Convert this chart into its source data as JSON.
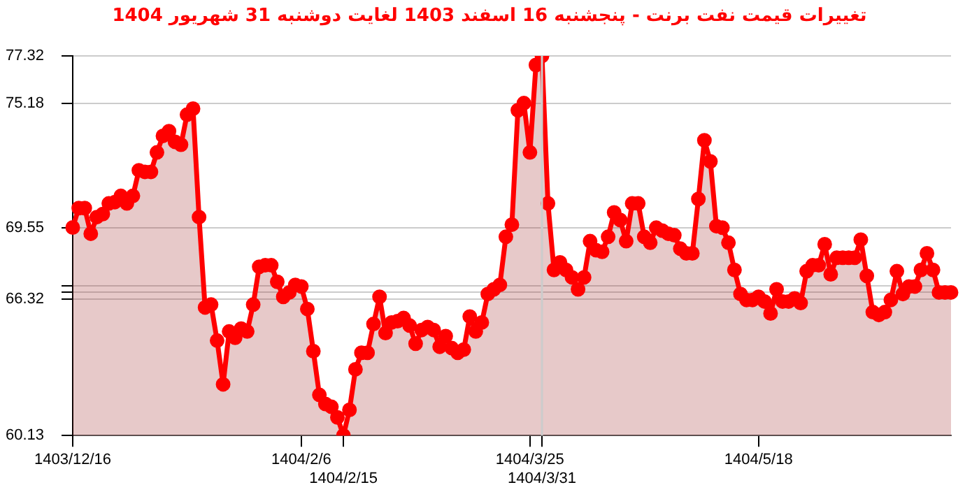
{
  "chart_data": {
    "type": "area",
    "title": "تغییرات قیمت نفت برنت - پنجشنبه 16 اسفند 1403 لغایت دوشنبه 31 شهریور 1404",
    "categories": [
      "1403/12/16",
      null,
      null,
      null,
      null,
      null,
      null,
      null,
      null,
      null,
      null,
      null,
      null,
      null,
      null,
      null,
      null,
      null,
      null,
      null,
      null,
      null,
      null,
      null,
      null,
      null,
      null,
      null,
      null,
      null,
      null,
      null,
      null,
      null,
      null,
      null,
      null,
      null,
      "1404/2/6",
      null,
      null,
      null,
      null,
      null,
      null,
      "1404/2/15",
      null,
      null,
      null,
      null,
      null,
      null,
      null,
      null,
      null,
      null,
      null,
      null,
      null,
      null,
      null,
      null,
      null,
      null,
      null,
      null,
      null,
      null,
      null,
      null,
      null,
      null,
      null,
      null,
      null,
      null,
      "1404/3/25",
      null,
      "1404/3/31",
      null,
      null,
      null,
      null,
      null,
      null,
      null,
      null,
      null,
      null,
      null,
      null,
      null,
      null,
      null,
      null,
      null,
      null,
      null,
      null,
      null,
      null,
      null,
      null,
      null,
      null,
      null,
      null,
      null,
      null,
      null,
      null,
      null,
      null,
      null,
      "1404/5/18",
      null,
      null,
      null,
      null,
      null,
      null,
      null,
      null,
      null,
      null,
      null,
      null,
      null,
      null,
      null,
      null,
      null,
      null,
      null,
      null,
      null,
      null,
      null,
      null,
      null,
      null,
      null,
      null,
      null,
      null,
      null,
      null
    ],
    "series": [
      {
        "color": "#ff0000",
        "values": [
          69.55,
          70.43,
          70.43,
          69.27,
          70.02,
          70.16,
          70.64,
          70.7,
          70.98,
          70.64,
          70.98,
          72.14,
          72.07,
          72.07,
          72.95,
          73.7,
          73.91,
          73.43,
          73.3,
          74.66,
          74.93,
          70.02,
          65.93,
          66.06,
          64.43,
          62.45,
          64.84,
          64.56,
          64.97,
          64.84,
          66.06,
          67.77,
          67.84,
          67.84,
          67.09,
          66.41,
          66.61,
          66.95,
          66.88,
          65.86,
          63.95,
          61.97,
          61.56,
          61.43,
          60.95,
          60.13,
          61.29,
          63.13,
          63.88,
          63.88,
          65.18,
          66.41,
          64.77,
          65.25,
          65.31,
          65.45,
          65.11,
          64.29,
          64.91,
          65.04,
          64.91,
          64.15,
          64.63,
          64.09,
          63.88,
          64.02,
          65.52,
          64.84,
          65.25,
          66.54,
          66.75,
          66.95,
          69.13,
          69.68,
          74.86,
          75.18,
          72.95,
          76.91,
          77.32,
          70.64,
          67.63,
          67.97,
          67.63,
          67.29,
          66.75,
          67.29,
          68.93,
          68.52,
          68.45,
          69.13,
          70.23,
          69.89,
          68.93,
          70.64,
          70.64,
          69.13,
          68.86,
          69.54,
          69.41,
          69.27,
          69.2,
          68.59,
          68.38,
          68.38,
          70.84,
          73.5,
          72.54,
          69.61,
          69.54,
          68.86,
          67.63,
          66.54,
          66.27,
          66.27,
          66.41,
          66.2,
          65.66,
          66.75,
          66.2,
          66.2,
          66.34,
          66.13,
          67.57,
          67.84,
          67.84,
          68.79,
          67.43,
          68.18,
          68.18,
          68.18,
          68.18,
          69.0,
          67.36,
          65.72,
          65.59,
          65.72,
          66.27,
          67.57,
          66.54,
          66.88,
          66.88,
          67.63,
          68.38,
          67.63,
          66.61,
          66.61,
          66.61
        ]
      }
    ],
    "ylim": [
      60.13,
      77.32
    ],
    "yticks": [
      60.13,
      66.32,
      {
        "value": 66.61,
        "label": null
      },
      {
        "value": 66.91,
        "label": null
      },
      69.55,
      75.18,
      77.32
    ],
    "ref_lines": [
      {
        "axis": "x",
        "value": "1404/3/31",
        "color": "#cccccc"
      }
    ],
    "grid": "y",
    "legend": false,
    "marker": "circle",
    "line_style": "solid"
  }
}
